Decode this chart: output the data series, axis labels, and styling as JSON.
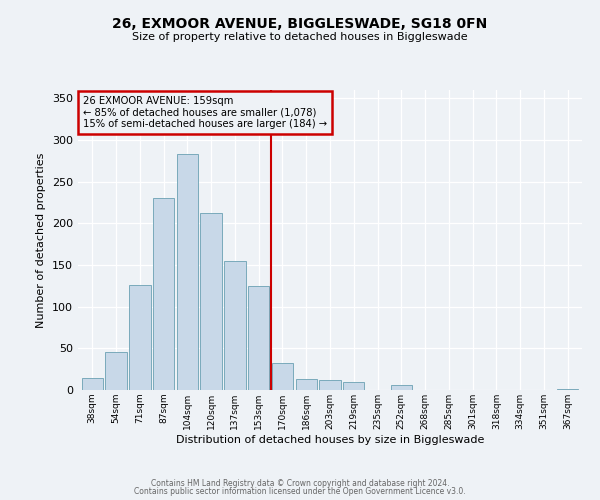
{
  "title": "26, EXMOOR AVENUE, BIGGLESWADE, SG18 0FN",
  "subtitle": "Size of property relative to detached houses in Biggleswade",
  "xlabel": "Distribution of detached houses by size in Biggleswade",
  "ylabel": "Number of detached properties",
  "bar_labels": [
    "38sqm",
    "54sqm",
    "71sqm",
    "87sqm",
    "104sqm",
    "120sqm",
    "137sqm",
    "153sqm",
    "170sqm",
    "186sqm",
    "203sqm",
    "219sqm",
    "235sqm",
    "252sqm",
    "268sqm",
    "285sqm",
    "301sqm",
    "318sqm",
    "334sqm",
    "351sqm",
    "367sqm"
  ],
  "bar_values": [
    14,
    46,
    126,
    231,
    283,
    212,
    155,
    125,
    33,
    13,
    12,
    10,
    0,
    6,
    0,
    0,
    0,
    0,
    0,
    0,
    1
  ],
  "bar_color": "#c8d8e8",
  "bar_edge_color": "#7aaabb",
  "vline_color": "#cc0000",
  "annotation_title": "26 EXMOOR AVENUE: 159sqm",
  "annotation_line1": "← 85% of detached houses are smaller (1,078)",
  "annotation_line2": "15% of semi-detached houses are larger (184) →",
  "annotation_box_color": "#cc0000",
  "ylim": [
    0,
    360
  ],
  "yticks": [
    0,
    50,
    100,
    150,
    200,
    250,
    300,
    350
  ],
  "footer1": "Contains HM Land Registry data © Crown copyright and database right 2024.",
  "footer2": "Contains public sector information licensed under the Open Government Licence v3.0.",
  "bg_color": "#eef2f6"
}
